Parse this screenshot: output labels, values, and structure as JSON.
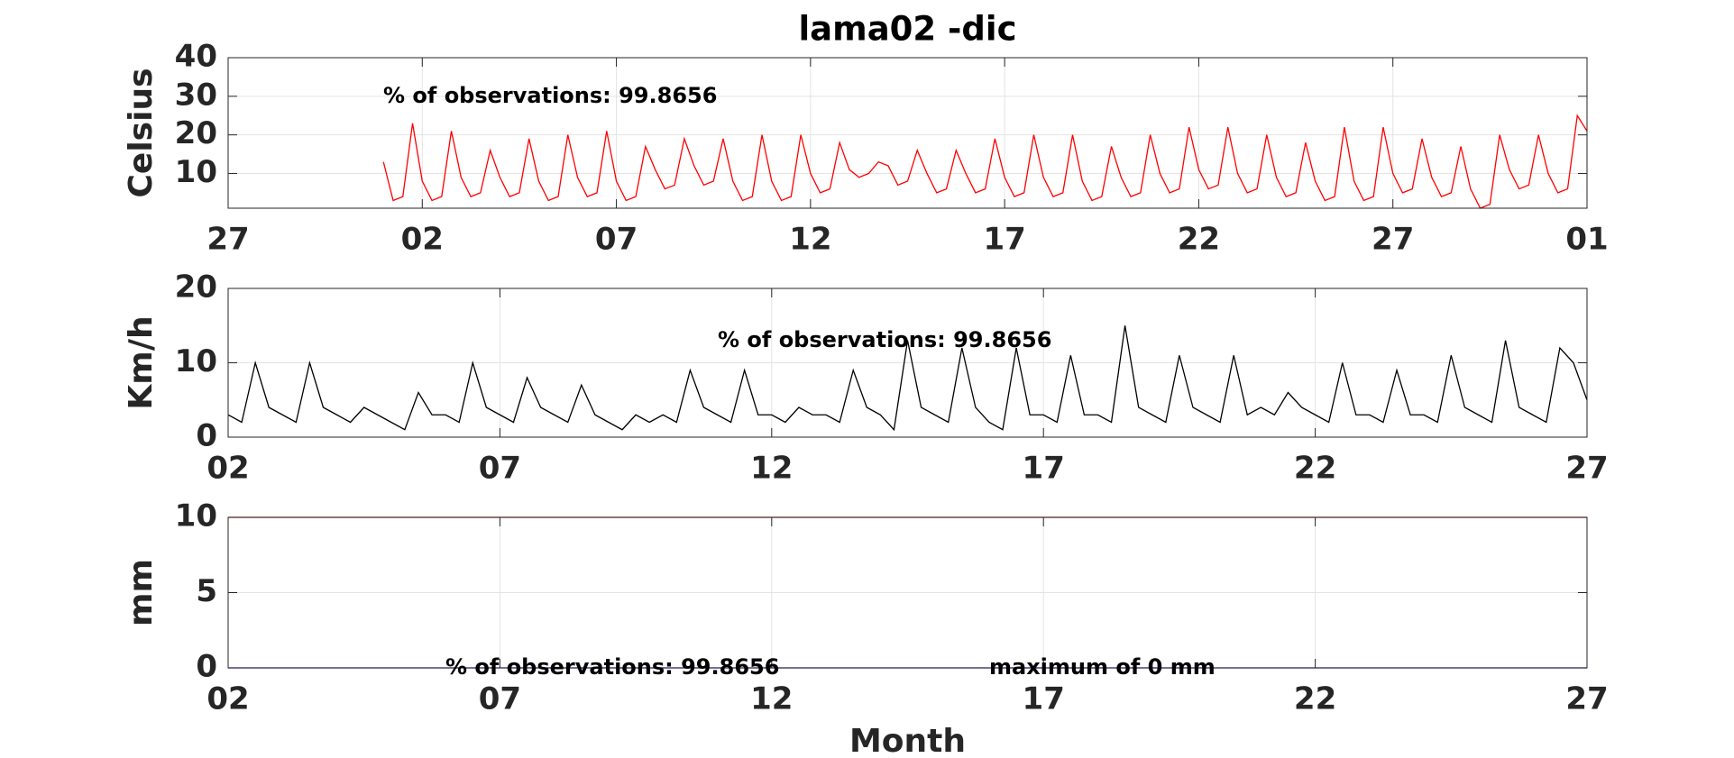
{
  "chart_data": [
    {
      "type": "line",
      "title": "lama02 -dic",
      "ylabel": "Celsius",
      "annotations": [
        "% of observations: 99.8656"
      ],
      "xlim": [
        0,
        35
      ],
      "xticks": [
        {
          "value": 0,
          "label": "27"
        },
        {
          "value": 5,
          "label": "02"
        },
        {
          "value": 10,
          "label": "07"
        },
        {
          "value": 15,
          "label": "12"
        },
        {
          "value": 20,
          "label": "17"
        },
        {
          "value": 25,
          "label": "22"
        },
        {
          "value": 30,
          "label": "27"
        },
        {
          "value": 35,
          "label": "01"
        }
      ],
      "ylim": [
        1,
        40
      ],
      "yticks": [
        10,
        20,
        30,
        40
      ],
      "grid": true,
      "x": [
        4,
        4.25,
        4.5,
        4.75,
        5,
        5.25,
        5.5,
        5.75,
        6,
        6.25,
        6.5,
        6.75,
        7,
        7.25,
        7.5,
        7.75,
        8,
        8.25,
        8.5,
        8.75,
        9,
        9.25,
        9.5,
        9.75,
        10,
        10.25,
        10.5,
        10.75,
        11,
        11.25,
        11.5,
        11.75,
        12,
        12.25,
        12.5,
        12.75,
        13,
        13.25,
        13.5,
        13.75,
        14,
        14.25,
        14.5,
        14.75,
        15,
        15.25,
        15.5,
        15.75,
        16,
        16.25,
        16.5,
        16.75,
        17,
        17.25,
        17.5,
        17.75,
        18,
        18.25,
        18.5,
        18.75,
        19,
        19.25,
        19.5,
        19.75,
        20,
        20.25,
        20.5,
        20.75,
        21,
        21.25,
        21.5,
        21.75,
        22,
        22.25,
        22.5,
        22.75,
        23,
        23.25,
        23.5,
        23.75,
        24,
        24.25,
        24.5,
        24.75,
        25,
        25.25,
        25.5,
        25.75,
        26,
        26.25,
        26.5,
        26.75,
        27,
        27.25,
        27.5,
        27.75,
        28,
        28.25,
        28.5,
        28.75,
        29,
        29.25,
        29.5,
        29.75,
        30,
        30.25,
        30.5,
        30.75,
        31,
        31.25,
        31.5,
        31.75,
        32,
        32.25,
        32.5,
        32.75,
        33,
        33.25,
        33.5,
        33.75,
        34,
        34.25,
        34.5,
        34.75,
        35
      ],
      "series": [
        {
          "color": "#ff0000",
          "values": [
            13,
            3,
            4,
            23,
            8,
            3,
            4,
            21,
            9,
            4,
            5,
            16,
            9,
            4,
            5,
            19,
            8,
            3,
            4,
            20,
            9,
            4,
            5,
            21,
            8,
            3,
            4,
            17,
            11,
            6,
            7,
            19,
            12,
            7,
            8,
            19,
            8,
            3,
            4,
            20,
            8,
            3,
            4,
            20,
            10,
            5,
            6,
            18,
            11,
            9,
            10,
            13,
            12,
            7,
            8,
            16,
            10,
            5,
            6,
            16,
            10,
            5,
            6,
            19,
            9,
            4,
            5,
            20,
            9,
            4,
            5,
            20,
            8,
            3,
            4,
            17,
            9,
            4,
            5,
            20,
            10,
            5,
            6,
            22,
            11,
            6,
            7,
            22,
            10,
            5,
            6,
            20,
            9,
            4,
            5,
            18,
            8,
            3,
            4,
            22,
            8,
            3,
            4,
            22,
            10,
            5,
            6,
            19,
            9,
            4,
            5,
            17,
            6,
            1,
            2,
            20,
            11,
            6,
            7,
            20,
            10,
            5,
            6,
            25,
            21
          ]
        }
      ]
    },
    {
      "type": "line",
      "ylabel": "Km/h",
      "annotations": [
        "% of observations: 99.8656"
      ],
      "xlim": [
        0,
        25
      ],
      "xticks": [
        {
          "value": 0,
          "label": "02"
        },
        {
          "value": 5,
          "label": "07"
        },
        {
          "value": 10,
          "label": "12"
        },
        {
          "value": 15,
          "label": "17"
        },
        {
          "value": 20,
          "label": "22"
        },
        {
          "value": 25,
          "label": "27"
        }
      ],
      "ylim": [
        0,
        20
      ],
      "yticks": [
        0,
        10,
        20
      ],
      "grid": true,
      "x": [
        0,
        0.25,
        0.5,
        0.75,
        1,
        1.25,
        1.5,
        1.75,
        2,
        2.25,
        2.5,
        2.75,
        3,
        3.25,
        3.5,
        3.75,
        4,
        4.25,
        4.5,
        4.75,
        5,
        5.25,
        5.5,
        5.75,
        6,
        6.25,
        6.5,
        6.75,
        7,
        7.25,
        7.5,
        7.75,
        8,
        8.25,
        8.5,
        8.75,
        9,
        9.25,
        9.5,
        9.75,
        10,
        10.25,
        10.5,
        10.75,
        11,
        11.25,
        11.5,
        11.75,
        12,
        12.25,
        12.5,
        12.75,
        13,
        13.25,
        13.5,
        13.75,
        14,
        14.25,
        14.5,
        14.75,
        15,
        15.25,
        15.5,
        15.75,
        16,
        16.25,
        16.5,
        16.75,
        17,
        17.25,
        17.5,
        17.75,
        18,
        18.25,
        18.5,
        18.75,
        19,
        19.25,
        19.5,
        19.75,
        20,
        20.25,
        20.5,
        20.75,
        21,
        21.25,
        21.5,
        21.75,
        22,
        22.25,
        22.5,
        22.75,
        23,
        23.25,
        23.5,
        23.75,
        24,
        24.25,
        24.5,
        24.75,
        25
      ],
      "series": [
        {
          "color": "#000000",
          "values": [
            3,
            2,
            10,
            4,
            3,
            2,
            10,
            4,
            3,
            2,
            4,
            3,
            2,
            1,
            6,
            3,
            3,
            2,
            10,
            4,
            3,
            2,
            8,
            4,
            3,
            2,
            7,
            3,
            2,
            1,
            3,
            2,
            3,
            2,
            9,
            4,
            3,
            2,
            9,
            3,
            3,
            2,
            4,
            3,
            3,
            2,
            9,
            4,
            3,
            1,
            13,
            4,
            3,
            2,
            12,
            4,
            2,
            1,
            12,
            3,
            3,
            2,
            11,
            3,
            3,
            2,
            15,
            4,
            3,
            2,
            11,
            4,
            3,
            2,
            11,
            3,
            4,
            3,
            6,
            4,
            3,
            2,
            10,
            3,
            3,
            2,
            9,
            3,
            3,
            2,
            11,
            4,
            3,
            2,
            13,
            4,
            3,
            2,
            12,
            10,
            5
          ]
        }
      ]
    },
    {
      "type": "line",
      "ylabel": "mm",
      "xlabel": "Month",
      "annotations": [
        "% of observations: 99.8656",
        "maximum of 0 mm"
      ],
      "xlim": [
        0,
        25
      ],
      "xticks": [
        {
          "value": 0,
          "label": "02"
        },
        {
          "value": 5,
          "label": "07"
        },
        {
          "value": 10,
          "label": "12"
        },
        {
          "value": 15,
          "label": "17"
        },
        {
          "value": 20,
          "label": "22"
        },
        {
          "value": 25,
          "label": "27"
        }
      ],
      "ylim": [
        0,
        10
      ],
      "yticks": [
        0,
        5,
        10
      ],
      "grid": true,
      "x": [
        0,
        25
      ],
      "series": [
        {
          "color": "#ff0000",
          "values": [
            10,
            10
          ]
        },
        {
          "color": "#0000ff",
          "values": [
            0,
            0
          ]
        }
      ]
    }
  ]
}
